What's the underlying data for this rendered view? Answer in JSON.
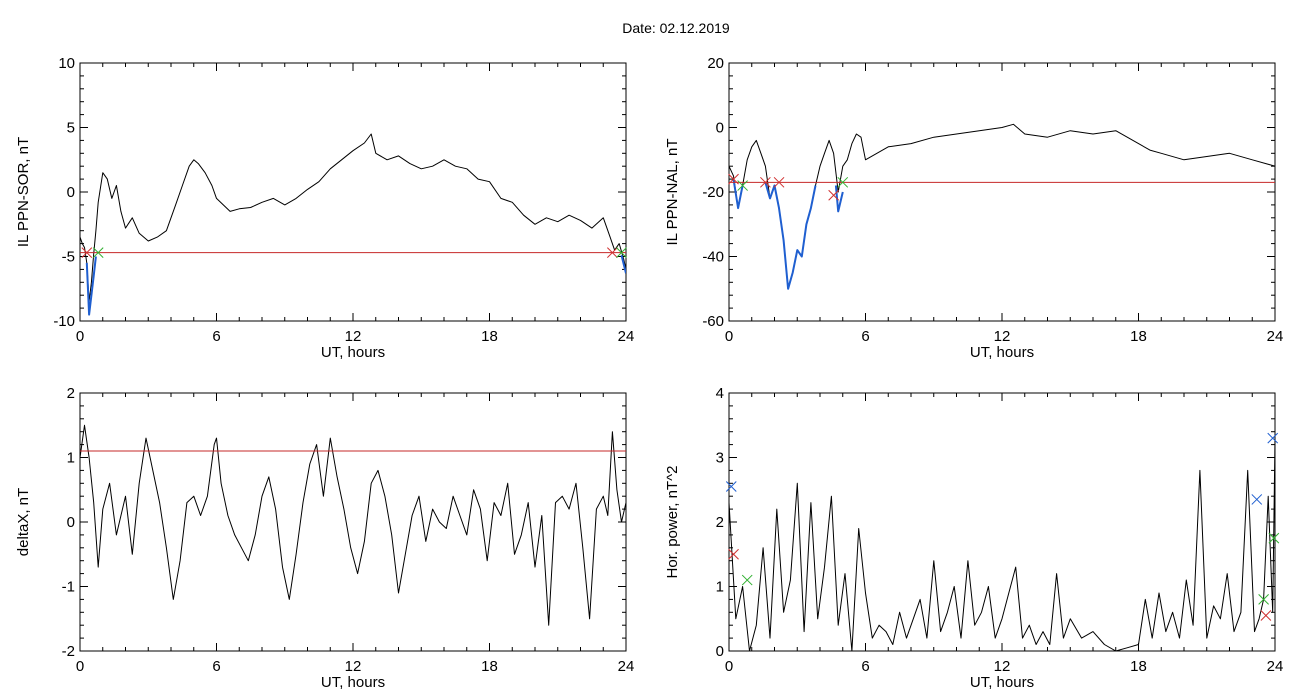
{
  "title": "Date:  02.12.2019",
  "chart_data": [
    {
      "type": "line",
      "xlabel": "UT, hours",
      "ylabel": "IL PPN-SOR, nT",
      "xlim": [
        0,
        24
      ],
      "ylim": [
        -10,
        10
      ],
      "xticks": [
        0,
        6,
        12,
        18,
        24
      ],
      "yticks": [
        -10,
        -5,
        0,
        5,
        10
      ],
      "threshold": -4.7,
      "series": [
        {
          "color": "#000000",
          "x": [
            0,
            0.1,
            0.2,
            0.3,
            0.4,
            0.5,
            0.6,
            0.7,
            0.8,
            1.0,
            1.2,
            1.4,
            1.6,
            1.8,
            2.0,
            2.3,
            2.6,
            3.0,
            3.4,
            3.8,
            4.2,
            4.5,
            4.8,
            5.0,
            5.2,
            5.5,
            5.8,
            6.0,
            6.3,
            6.6,
            7.0,
            7.5,
            8.0,
            8.5,
            9.0,
            9.5,
            10.0,
            10.5,
            11.0,
            11.5,
            12.0,
            12.5,
            12.8,
            13.0,
            13.5,
            14.0,
            14.5,
            15.0,
            15.5,
            16.0,
            16.5,
            17.0,
            17.5,
            18.0,
            18.5,
            19.0,
            19.5,
            20.0,
            20.5,
            21.0,
            21.5,
            22.0,
            22.5,
            23.0,
            23.3,
            23.5,
            23.7,
            23.9,
            24.0
          ],
          "y": [
            -3.5,
            -4.0,
            -4.3,
            -5.5,
            -8.5,
            -7.0,
            -4.8,
            -3.0,
            -0.8,
            1.5,
            1.0,
            -0.5,
            0.5,
            -1.5,
            -2.8,
            -2.0,
            -3.2,
            -3.8,
            -3.5,
            -3.0,
            -1.0,
            0.5,
            2.0,
            2.5,
            2.2,
            1.5,
            0.5,
            -0.5,
            -1.0,
            -1.5,
            -1.3,
            -1.2,
            -0.8,
            -0.5,
            -1.0,
            -0.5,
            0.2,
            0.8,
            1.8,
            2.5,
            3.2,
            3.8,
            4.5,
            3.0,
            2.5,
            2.8,
            2.2,
            1.8,
            2.0,
            2.5,
            2.0,
            1.8,
            1.0,
            0.8,
            -0.5,
            -0.8,
            -1.8,
            -2.5,
            -2.0,
            -2.3,
            -1.8,
            -2.2,
            -2.8,
            -2.0,
            -3.5,
            -4.5,
            -4.0,
            -5.2,
            -6.0
          ]
        },
        {
          "color": "#1f5fd0",
          "x": [
            0.3,
            0.4,
            0.5,
            0.6,
            0.7
          ],
          "y": [
            -5.5,
            -9.5,
            -8.0,
            -6.5,
            -5.0
          ]
        },
        {
          "color": "#1f5fd0",
          "x": [
            23.8,
            23.9,
            24.0
          ],
          "y": [
            -4.9,
            -5.6,
            -6.3
          ]
        }
      ],
      "markers": [
        {
          "symbol": "x",
          "color": "#d03030",
          "x": 0.3,
          "y": -4.7
        },
        {
          "symbol": "x",
          "color": "#30b030",
          "x": 0.8,
          "y": -4.7
        },
        {
          "symbol": "x",
          "color": "#d03030",
          "x": 23.4,
          "y": -4.7
        },
        {
          "symbol": "x",
          "color": "#30b030",
          "x": 23.8,
          "y": -4.7
        }
      ]
    },
    {
      "type": "line",
      "xlabel": "UT, hours",
      "ylabel": "IL PPN-NAL, nT",
      "xlim": [
        0,
        24
      ],
      "ylim": [
        -60,
        20
      ],
      "xticks": [
        0,
        6,
        12,
        18,
        24
      ],
      "yticks": [
        -60,
        -40,
        -20,
        0,
        20
      ],
      "threshold": -17,
      "series": [
        {
          "color": "#000000",
          "x": [
            0,
            0.2,
            0.4,
            0.6,
            0.8,
            1.0,
            1.2,
            1.4,
            1.6,
            1.8,
            2.0,
            2.2,
            2.4,
            2.6,
            2.8,
            3.0,
            3.2,
            3.4,
            3.6,
            3.8,
            4.0,
            4.2,
            4.4,
            4.6,
            4.8,
            5.0,
            5.2,
            5.4,
            5.6,
            5.8,
            6.0,
            6.5,
            7.0,
            8.0,
            9.0,
            10.0,
            11.0,
            12.0,
            12.5,
            13.0,
            14.0,
            15.0,
            16.0,
            17.0,
            18.0,
            18.5,
            19.0,
            20.0,
            21.0,
            22.0,
            23.0,
            24.0
          ],
          "y": [
            -12,
            -15,
            -25,
            -18,
            -10,
            -6,
            -4,
            -8,
            -12,
            -22,
            -18,
            -25,
            -35,
            -50,
            -45,
            -38,
            -40,
            -30,
            -25,
            -18,
            -12,
            -8,
            -4,
            -8,
            -20,
            -12,
            -10,
            -5,
            -2,
            -3,
            -10,
            -8,
            -6,
            -5,
            -3,
            -2,
            -1,
            0,
            1,
            -2,
            -3,
            -1,
            -2,
            -1,
            -5,
            -7,
            -8,
            -10,
            -9,
            -8,
            -10,
            -12
          ]
        },
        {
          "color": "#1f5fd0",
          "x": [
            0.2,
            0.4,
            0.6
          ],
          "y": [
            -16,
            -25,
            -18
          ]
        },
        {
          "color": "#1f5fd0",
          "x": [
            1.6,
            1.8,
            2.0,
            2.2,
            2.4,
            2.6,
            2.8,
            3.0,
            3.2,
            3.4,
            3.6,
            3.8
          ],
          "y": [
            -17,
            -22,
            -18,
            -25,
            -35,
            -50,
            -45,
            -38,
            -40,
            -30,
            -25,
            -18
          ]
        },
        {
          "color": "#1f5fd0",
          "x": [
            4.7,
            4.8,
            5.0
          ],
          "y": [
            -18,
            -26,
            -20
          ]
        }
      ],
      "markers": [
        {
          "symbol": "x",
          "color": "#d03030",
          "x": 0.2,
          "y": -16
        },
        {
          "symbol": "x",
          "color": "#30b030",
          "x": 0.6,
          "y": -18
        },
        {
          "symbol": "x",
          "color": "#d03030",
          "x": 1.6,
          "y": -17
        },
        {
          "symbol": "x",
          "color": "#d03030",
          "x": 2.2,
          "y": -17
        },
        {
          "symbol": "x",
          "color": "#d03030",
          "x": 4.6,
          "y": -21
        },
        {
          "symbol": "x",
          "color": "#30b030",
          "x": 5.0,
          "y": -17
        }
      ]
    },
    {
      "type": "line",
      "xlabel": "UT, hours",
      "ylabel": "deltaX, nT",
      "xlim": [
        0,
        24
      ],
      "ylim": [
        -2,
        2
      ],
      "xticks": [
        0,
        6,
        12,
        18,
        24
      ],
      "yticks": [
        -2,
        -1,
        0,
        1,
        2
      ],
      "threshold": 1.1,
      "series": [
        {
          "color": "#000000",
          "x": [
            0,
            0.2,
            0.4,
            0.6,
            0.8,
            1.0,
            1.3,
            1.6,
            2.0,
            2.3,
            2.6,
            2.9,
            3.2,
            3.5,
            3.8,
            4.1,
            4.4,
            4.7,
            5.0,
            5.3,
            5.6,
            5.9,
            6.0,
            6.2,
            6.5,
            6.8,
            7.1,
            7.4,
            7.7,
            8.0,
            8.3,
            8.6,
            8.9,
            9.2,
            9.5,
            9.8,
            10.1,
            10.4,
            10.7,
            11.0,
            11.3,
            11.6,
            11.9,
            12.2,
            12.5,
            12.8,
            13.1,
            13.4,
            13.7,
            14.0,
            14.3,
            14.6,
            14.9,
            15.2,
            15.5,
            15.8,
            16.1,
            16.4,
            16.7,
            17.0,
            17.3,
            17.6,
            17.9,
            18.2,
            18.5,
            18.8,
            19.1,
            19.4,
            19.7,
            20.0,
            20.3,
            20.6,
            20.9,
            21.2,
            21.5,
            21.8,
            22.1,
            22.4,
            22.7,
            23.0,
            23.2,
            23.4,
            23.6,
            23.8,
            24.0
          ],
          "y": [
            1.0,
            1.5,
            1.0,
            0.3,
            -0.7,
            0.2,
            0.6,
            -0.2,
            0.4,
            -0.5,
            0.6,
            1.3,
            0.8,
            0.3,
            -0.4,
            -1.2,
            -0.6,
            0.3,
            0.4,
            0.1,
            0.4,
            1.2,
            1.3,
            0.6,
            0.1,
            -0.2,
            -0.4,
            -0.6,
            -0.2,
            0.4,
            0.7,
            0.2,
            -0.7,
            -1.2,
            -0.5,
            0.3,
            0.9,
            1.2,
            0.4,
            1.3,
            0.7,
            0.2,
            -0.4,
            -0.8,
            -0.3,
            0.6,
            0.8,
            0.4,
            -0.2,
            -1.1,
            -0.5,
            0.1,
            0.4,
            -0.3,
            0.2,
            0.0,
            -0.1,
            0.4,
            0.1,
            -0.2,
            0.5,
            0.2,
            -0.6,
            0.3,
            0.1,
            0.6,
            -0.5,
            -0.2,
            0.3,
            -0.7,
            0.1,
            -1.6,
            0.3,
            0.4,
            0.2,
            0.6,
            -0.4,
            -1.5,
            0.2,
            0.4,
            0.1,
            1.4,
            0.5,
            0.0,
            0.3
          ]
        }
      ]
    },
    {
      "type": "line",
      "xlabel": "UT, hours",
      "ylabel": "Hor. power, nT^2",
      "xlim": [
        0,
        24
      ],
      "ylim": [
        0,
        4
      ],
      "xticks": [
        0,
        6,
        12,
        18,
        24
      ],
      "yticks": [
        0,
        1,
        2,
        3,
        4
      ],
      "series": [
        {
          "color": "#000000",
          "x": [
            0,
            0.3,
            0.6,
            0.9,
            1.2,
            1.5,
            1.8,
            2.1,
            2.4,
            2.7,
            3.0,
            3.3,
            3.6,
            3.9,
            4.2,
            4.5,
            4.8,
            5.1,
            5.4,
            5.7,
            6.0,
            6.3,
            6.6,
            6.9,
            7.2,
            7.5,
            7.8,
            8.1,
            8.4,
            8.7,
            9.0,
            9.3,
            9.6,
            9.9,
            10.2,
            10.5,
            10.8,
            11.1,
            11.4,
            11.7,
            12.0,
            12.3,
            12.6,
            12.9,
            13.2,
            13.5,
            13.8,
            14.1,
            14.4,
            14.7,
            15.0,
            15.5,
            16.0,
            16.5,
            17.0,
            17.5,
            18.0,
            18.3,
            18.6,
            18.9,
            19.2,
            19.5,
            19.8,
            20.1,
            20.4,
            20.7,
            21.0,
            21.3,
            21.6,
            21.9,
            22.2,
            22.5,
            22.8,
            23.1,
            23.3,
            23.5,
            23.7,
            23.9,
            24.0
          ],
          "y": [
            2.3,
            0.5,
            1.0,
            0.0,
            0.4,
            1.6,
            0.2,
            2.2,
            0.6,
            1.1,
            2.6,
            0.3,
            2.3,
            0.5,
            1.3,
            2.4,
            0.4,
            1.2,
            0.0,
            1.9,
            0.9,
            0.2,
            0.4,
            0.3,
            0.1,
            0.6,
            0.2,
            0.5,
            0.8,
            0.2,
            1.4,
            0.3,
            0.6,
            1.0,
            0.2,
            1.4,
            0.4,
            0.6,
            1.0,
            0.2,
            0.5,
            0.9,
            1.3,
            0.2,
            0.4,
            0.1,
            0.3,
            0.1,
            1.2,
            0.2,
            0.5,
            0.2,
            0.3,
            0.1,
            0.0,
            0.05,
            0.1,
            0.8,
            0.2,
            0.9,
            0.3,
            0.6,
            0.2,
            1.1,
            0.4,
            2.8,
            0.2,
            0.7,
            0.5,
            1.2,
            0.3,
            0.6,
            2.8,
            0.3,
            0.5,
            0.8,
            2.4,
            0.6,
            3.3
          ]
        }
      ],
      "markers": [
        {
          "symbol": "x",
          "color": "#1f5fd0",
          "x": 0.1,
          "y": 2.55
        },
        {
          "symbol": "x",
          "color": "#d03030",
          "x": 0.2,
          "y": 1.5
        },
        {
          "symbol": "x",
          "color": "#30b030",
          "x": 0.8,
          "y": 1.1
        },
        {
          "symbol": "x",
          "color": "#1f5fd0",
          "x": 23.2,
          "y": 2.35
        },
        {
          "symbol": "x",
          "color": "#30b030",
          "x": 23.5,
          "y": 0.8
        },
        {
          "symbol": "x",
          "color": "#d03030",
          "x": 23.6,
          "y": 0.55
        },
        {
          "symbol": "x",
          "color": "#1f5fd0",
          "x": 23.9,
          "y": 3.3
        },
        {
          "symbol": "x",
          "color": "#30b030",
          "x": 23.95,
          "y": 1.75
        }
      ]
    }
  ]
}
